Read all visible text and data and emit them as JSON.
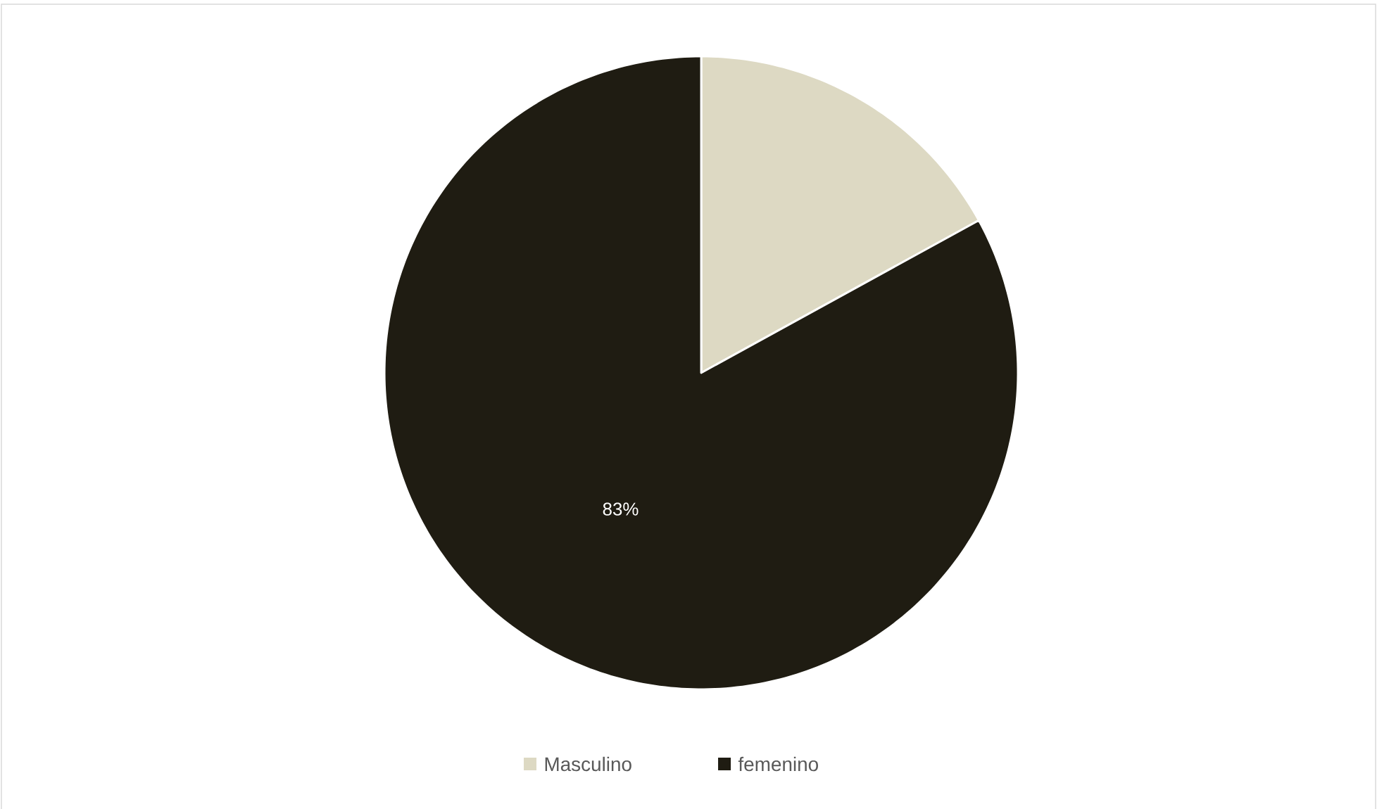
{
  "chart_data": {
    "type": "pie",
    "categories": [
      "Masculino",
      "femenino"
    ],
    "values": [
      17,
      83
    ],
    "colors": [
      "#ddd9c3",
      "#1f1c12"
    ],
    "value_labels": [
      null,
      "83%"
    ],
    "legend": "bottom"
  }
}
